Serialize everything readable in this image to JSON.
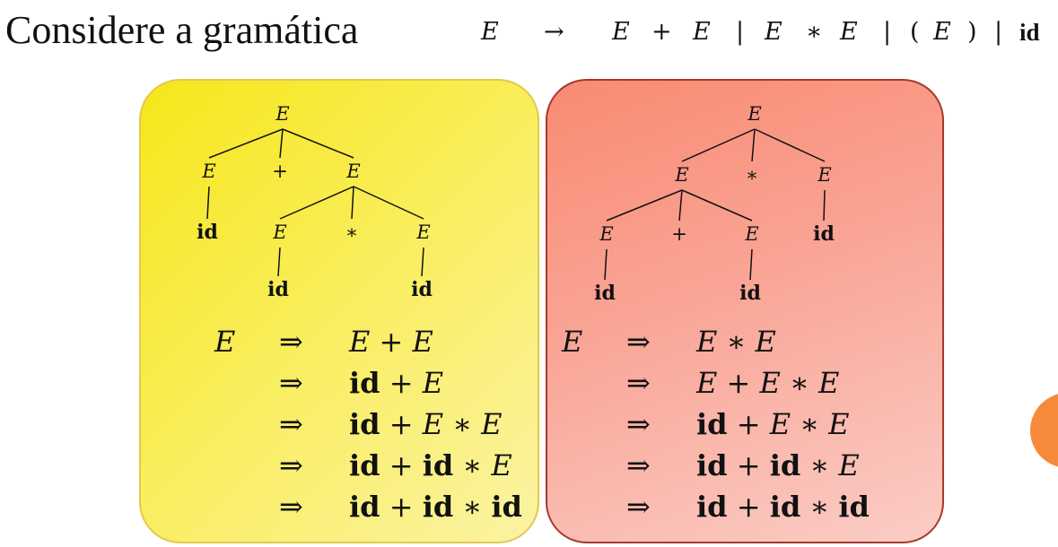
{
  "title": {
    "lead": "Considere a gramática",
    "tokens": [
      "E",
      "→",
      "E",
      "+",
      "E",
      "|",
      "E",
      "∗",
      "E",
      "|",
      "(",
      "E",
      ")",
      "|",
      "id"
    ]
  },
  "colors": {
    "yellow_panel": "#f7e61a",
    "red_panel": "#f98a72",
    "red_border": "#a8382c",
    "orange_dot": "#f58b3a"
  },
  "left_panel": {
    "tree": [
      {
        "id": "n0",
        "label": "E",
        "style": "it",
        "parent": null
      },
      {
        "id": "n1",
        "label": "E",
        "style": "it",
        "parent": "n0"
      },
      {
        "id": "n2",
        "label": "+",
        "style": "",
        "parent": "n0"
      },
      {
        "id": "n3",
        "label": "E",
        "style": "it",
        "parent": "n0"
      },
      {
        "id": "n4",
        "label": "id",
        "style": "bf",
        "parent": "n1"
      },
      {
        "id": "n5",
        "label": "E",
        "style": "it",
        "parent": "n3"
      },
      {
        "id": "n6",
        "label": "∗",
        "style": "",
        "parent": "n3"
      },
      {
        "id": "n7",
        "label": "E",
        "style": "it",
        "parent": "n3"
      },
      {
        "id": "n8",
        "label": "id",
        "style": "bf",
        "parent": "n5"
      },
      {
        "id": "n9",
        "label": "id",
        "style": "bf",
        "parent": "n7"
      }
    ],
    "derivation": [
      {
        "lhs": "E",
        "arrow": "⇒",
        "rhs": [
          "E",
          " + ",
          "E"
        ]
      },
      {
        "lhs": "",
        "arrow": "⇒",
        "rhs": [
          "id",
          " + ",
          "E"
        ]
      },
      {
        "lhs": "",
        "arrow": "⇒",
        "rhs": [
          "id",
          " + ",
          "E",
          " ∗ ",
          "E"
        ]
      },
      {
        "lhs": "",
        "arrow": "⇒",
        "rhs": [
          "id",
          " + ",
          "id",
          " ∗ ",
          "E"
        ]
      },
      {
        "lhs": "",
        "arrow": "⇒",
        "rhs": [
          "id",
          " + ",
          "id",
          " ∗ ",
          "id"
        ]
      }
    ]
  },
  "right_panel": {
    "tree": [
      {
        "id": "m0",
        "label": "E",
        "style": "it",
        "parent": null
      },
      {
        "id": "m1",
        "label": "E",
        "style": "it",
        "parent": "m0"
      },
      {
        "id": "m2",
        "label": "∗",
        "style": "",
        "parent": "m0"
      },
      {
        "id": "m3",
        "label": "E",
        "style": "it",
        "parent": "m0"
      },
      {
        "id": "m4",
        "label": "E",
        "style": "it",
        "parent": "m1"
      },
      {
        "id": "m5",
        "label": "+",
        "style": "",
        "parent": "m1"
      },
      {
        "id": "m6",
        "label": "E",
        "style": "it",
        "parent": "m1"
      },
      {
        "id": "m7",
        "label": "id",
        "style": "bf",
        "parent": "m3"
      },
      {
        "id": "m8",
        "label": "id",
        "style": "bf",
        "parent": "m4"
      },
      {
        "id": "m9",
        "label": "id",
        "style": "bf",
        "parent": "m6"
      }
    ],
    "derivation": [
      {
        "lhs": "E",
        "arrow": "⇒",
        "rhs": [
          "E",
          " ∗ ",
          "E"
        ]
      },
      {
        "lhs": "",
        "arrow": "⇒",
        "rhs": [
          "E",
          " + ",
          "E",
          " ∗ ",
          "E"
        ]
      },
      {
        "lhs": "",
        "arrow": "⇒",
        "rhs": [
          "id",
          " + ",
          "E",
          " ∗ ",
          "E"
        ]
      },
      {
        "lhs": "",
        "arrow": "⇒",
        "rhs": [
          "id",
          " + ",
          "id",
          " ∗ ",
          "E"
        ]
      },
      {
        "lhs": "",
        "arrow": "⇒",
        "rhs": [
          "id",
          " + ",
          "id",
          " ∗ ",
          "id"
        ]
      }
    ]
  }
}
